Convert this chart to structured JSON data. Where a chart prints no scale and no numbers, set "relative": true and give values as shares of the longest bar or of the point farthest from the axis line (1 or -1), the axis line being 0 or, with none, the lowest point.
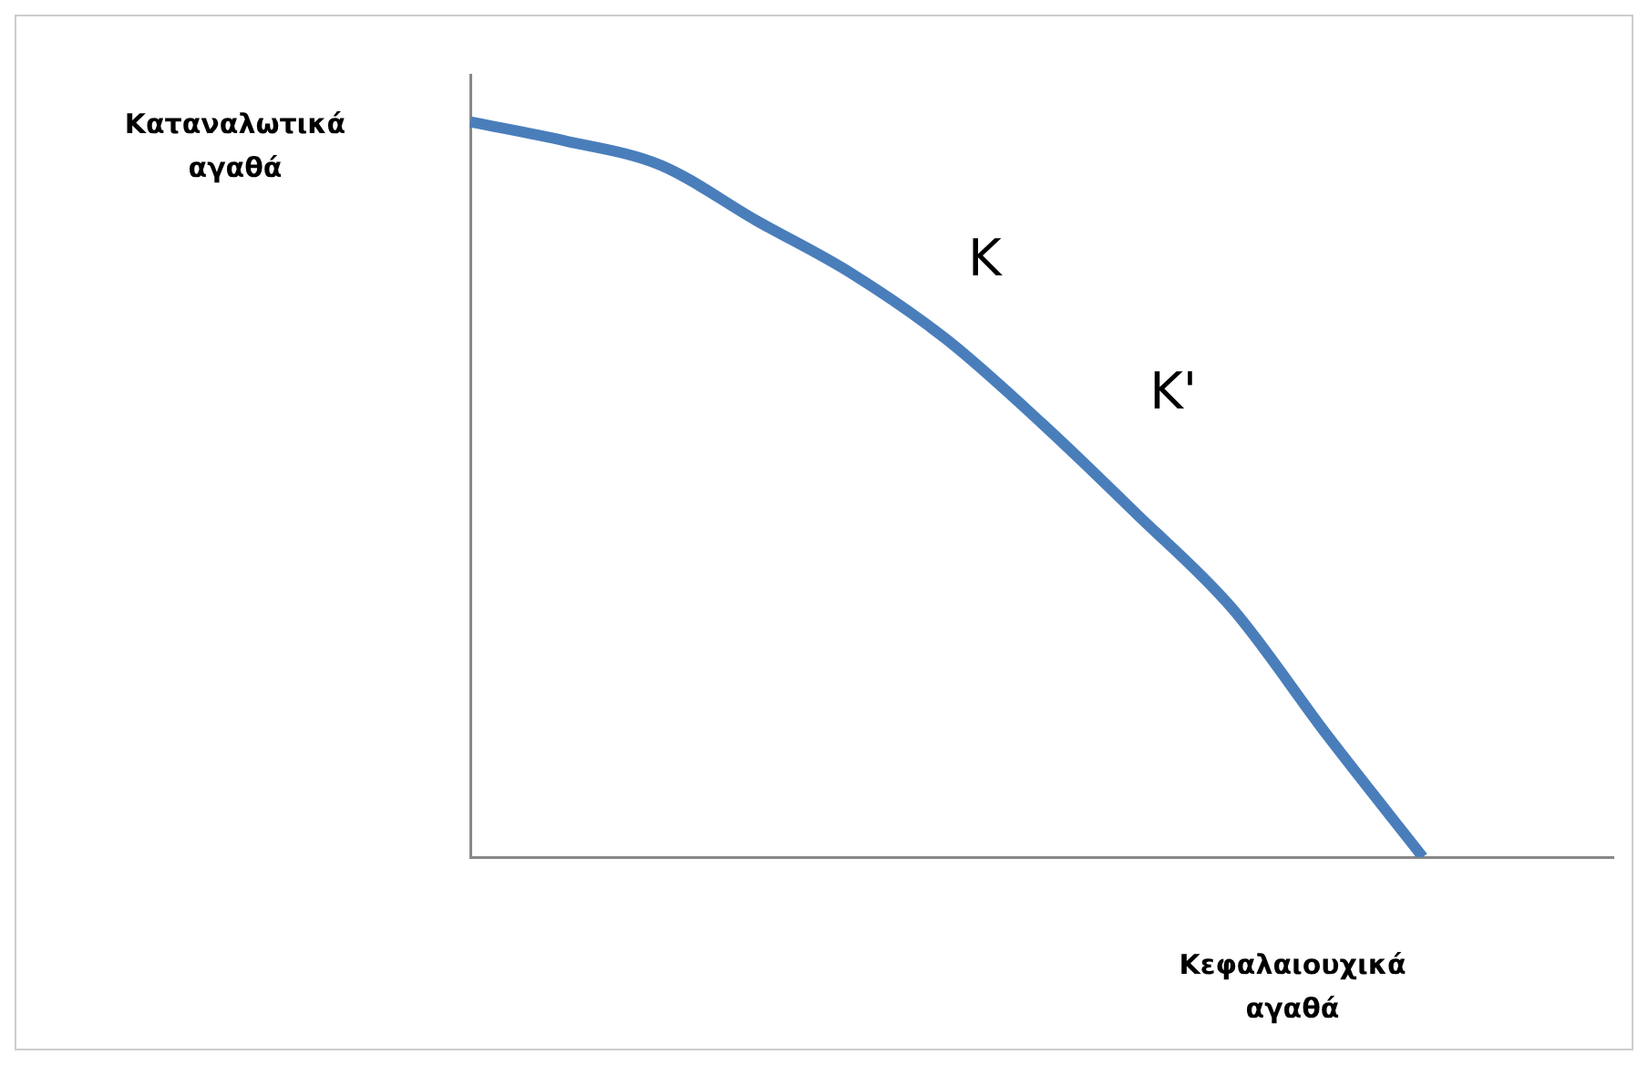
{
  "chart_data": {
    "type": "line",
    "relative": true,
    "xlabel": "Κεφαλαιουχικά αγαθά",
    "ylabel": "Καταναλωτικά αγαθά",
    "categories": [
      null,
      null,
      null,
      null,
      null,
      null,
      null,
      null,
      null,
      null,
      null,
      null,
      null
    ],
    "series": [
      {
        "color": "#4a7ebb",
        "values": [
          1.0,
          0.974,
          0.941,
          0.866,
          0.794,
          0.704,
          0.59,
          0.466,
          0.338,
          0.165,
          0,
          null,
          null
        ]
      }
    ],
    "annotations": [
      "K",
      "K'"
    ],
    "legend": false,
    "grid": false,
    "marker": "none",
    "line_style": "solid"
  }
}
